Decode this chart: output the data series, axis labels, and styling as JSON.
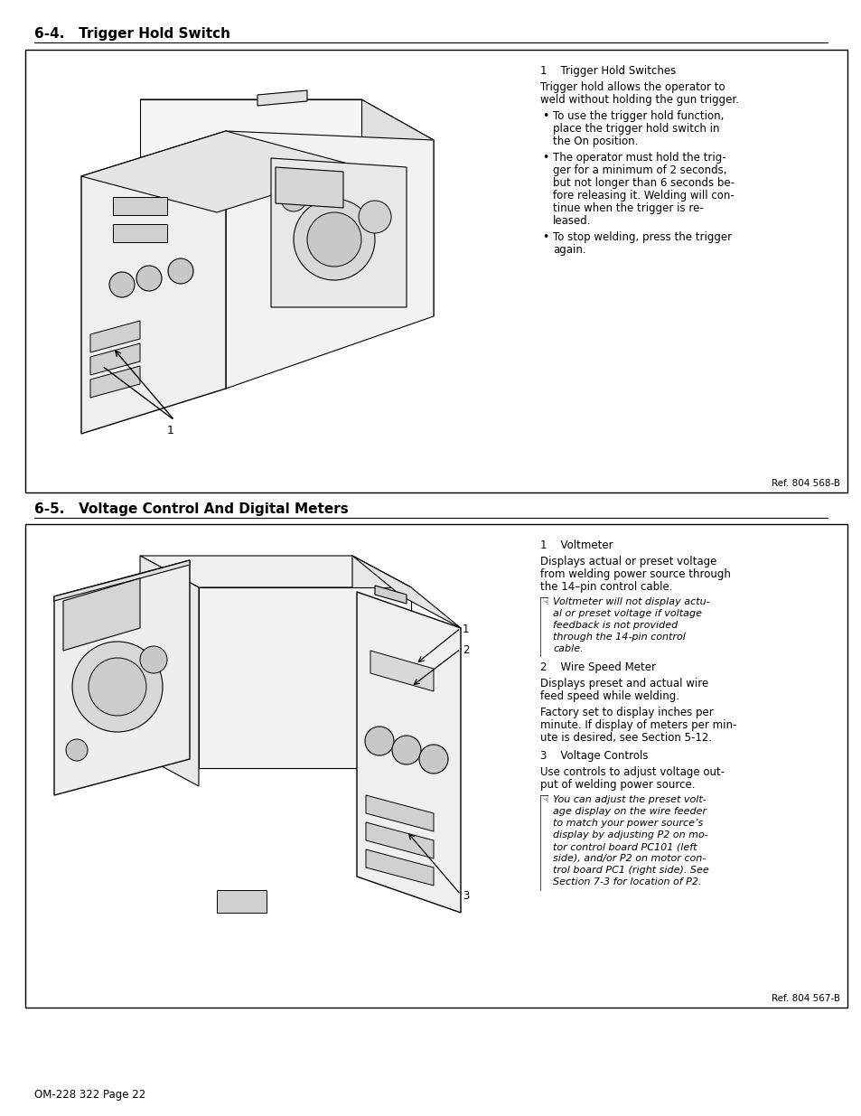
{
  "page_background": "#ffffff",
  "page_footer": "OM-228 322 Page 22",
  "section1_title": "6-4.   Trigger Hold Switch",
  "section1_box_ref": "Ref. 804 568-B",
  "section1_label_num": "1    Trigger Hold Switches",
  "section1_para1": "Trigger hold allows the operator to\nweld without holding the gun trigger.",
  "section1_bullets": [
    "To use the trigger hold function,\nplace the trigger hold switch in\nthe On position.",
    "The operator must hold the trig-\nger for a minimum of 2 seconds,\nbut not longer than 6 seconds be-\nfore releasing it. Welding will con-\ntinue when the trigger is re-\nleased.",
    "To stop welding, press the trigger\nagain."
  ],
  "section2_title": "6-5.   Voltage Control And Digital Meters",
  "section2_box_ref": "Ref. 804 567-B",
  "section2_label1_num": "1    Voltmeter",
  "section2_para1": "Displays actual or preset voltage\nfrom welding power source through\nthe 14–pin control cable.",
  "section2_note1": "Voltmeter will not display actu-\nal or preset voltage if voltage\nfeedback is not provided\nthrough the 14-pin control\ncable.",
  "section2_label2_num": "2    Wire Speed Meter",
  "section2_para2": "Displays preset and actual wire\nfeed speed while welding.",
  "section2_para3": "Factory set to display inches per\nminute. If display of meters per min-\nute is desired, see Section 5-12.",
  "section2_label3_num": "3    Voltage Controls",
  "section2_para4": "Use controls to adjust voltage out-\nput of welding power source.",
  "section2_note2": "You can adjust the preset volt-\nage display on the wire feeder\nto match your power source’s\ndisplay by adjusting P2 on mo-\ntor control board PC101 (left\nside), and/or P2 on motor con-\ntrol board PC1 (right side). See\nSection 7-3 for location of P2."
}
